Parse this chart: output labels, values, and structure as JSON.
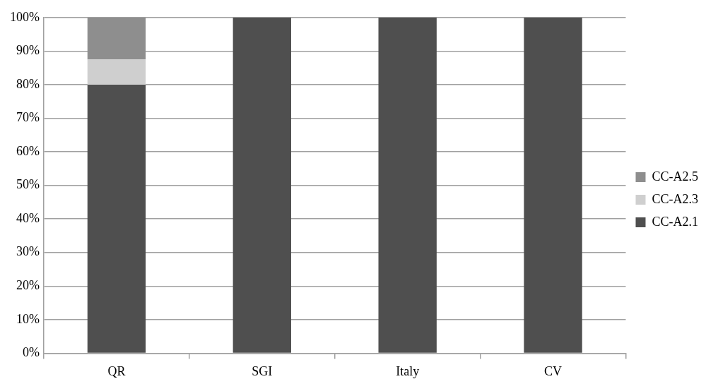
{
  "chart_data": {
    "type": "bar",
    "stacked": true,
    "categories": [
      "QR",
      "SGI",
      "Italy",
      "CV"
    ],
    "series": [
      {
        "name": "CC-A2.1",
        "color": "#4f4f4f",
        "values": [
          80,
          100,
          100,
          100
        ]
      },
      {
        "name": "CC-A2.3",
        "color": "#cfcfcf",
        "values": [
          7.5,
          0,
          0,
          0
        ]
      },
      {
        "name": "CC-A2.5",
        "color": "#8e8e8e",
        "values": [
          12.5,
          0,
          0,
          0
        ]
      }
    ],
    "ylim": [
      0,
      100
    ],
    "yticks": [
      {
        "value": 0,
        "label": "0%"
      },
      {
        "value": 10,
        "label": "10%"
      },
      {
        "value": 20,
        "label": "20%"
      },
      {
        "value": 30,
        "label": "30%"
      },
      {
        "value": 40,
        "label": "40%"
      },
      {
        "value": 50,
        "label": "50%"
      },
      {
        "value": 60,
        "label": "60%"
      },
      {
        "value": 70,
        "label": "70%"
      },
      {
        "value": 80,
        "label": "80%"
      },
      {
        "value": 90,
        "label": "90%"
      },
      {
        "value": 100,
        "label": "100%"
      }
    ],
    "grid": "y",
    "legend": "right"
  }
}
